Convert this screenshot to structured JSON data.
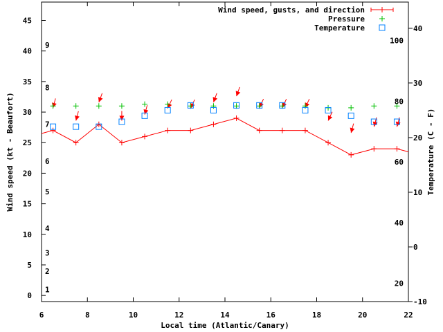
{
  "chart_data": {
    "type": "line",
    "title": "",
    "xlabel": "Local time (Atlantic/Canary)",
    "ylabel": "Wind speed (kt - Beaufort)",
    "y2label": "Temperature (C - F)",
    "xlim": [
      6,
      22
    ],
    "ylim": [
      -1,
      48
    ],
    "y2lim": [
      -10,
      44.8
    ],
    "grid": false,
    "legend_placement": "top-right",
    "x_ticks": [
      6,
      8,
      10,
      12,
      14,
      16,
      18,
      20,
      22
    ],
    "y_ticks": [
      0,
      5,
      10,
      15,
      20,
      25,
      30,
      35,
      40,
      45
    ],
    "y2_ticks": [
      -10,
      0,
      10,
      20,
      30,
      40
    ],
    "fahrenheit_labels": [
      20,
      40,
      60,
      80,
      100
    ],
    "beaufort_labels": [
      {
        "label": "1",
        "kt": 1
      },
      {
        "label": "2",
        "kt": 4
      },
      {
        "label": "3",
        "kt": 7
      },
      {
        "label": "4",
        "kt": 11
      },
      {
        "label": "5",
        "kt": 17
      },
      {
        "label": "6",
        "kt": 22
      },
      {
        "label": "7",
        "kt": 28
      },
      {
        "label": "8",
        "kt": 34
      },
      {
        "label": "9",
        "kt": 41
      }
    ],
    "x": [
      6.5,
      7.5,
      8.5,
      9.5,
      10.5,
      11.5,
      12.5,
      13.5,
      14.5,
      15.5,
      16.5,
      17.5,
      18.5,
      19.5,
      20.5,
      21.5
    ],
    "series": [
      {
        "name": "Wind speed, gusts, and direction",
        "color": "#ff0000",
        "values": [
          27,
          25,
          28,
          25,
          26,
          27,
          27,
          28,
          29,
          27,
          27,
          27,
          25,
          23,
          24,
          24
        ],
        "edge_values": [
          26.5,
          23.5
        ],
        "gusts": [
          30.7,
          28.6,
          31.6,
          28.6,
          29.6,
          30.6,
          30.6,
          31.6,
          32.6,
          30.7,
          30.7,
          30.7,
          28.6,
          26.6,
          27.6,
          27.6
        ],
        "direction_deg": [
          15,
          15,
          20,
          0,
          15,
          25,
          25,
          20,
          20,
          25,
          25,
          25,
          25,
          15,
          15,
          15
        ]
      },
      {
        "name": "Pressure",
        "color": "#00c000",
        "axis": "left",
        "values": [
          31.0,
          31.0,
          31.0,
          31.0,
          31.3,
          31.3,
          31.0,
          31.0,
          31.0,
          31.0,
          31.0,
          31.0,
          30.7,
          30.7,
          31.0,
          31.0
        ]
      },
      {
        "name": "Temperature",
        "color": "#0080ff",
        "axis": "right",
        "values": [
          22.0,
          22.0,
          22.0,
          22.9,
          24.0,
          25.0,
          25.9,
          25.0,
          25.9,
          25.9,
          25.9,
          25.0,
          25.0,
          24.0,
          22.9,
          22.9
        ]
      }
    ]
  }
}
